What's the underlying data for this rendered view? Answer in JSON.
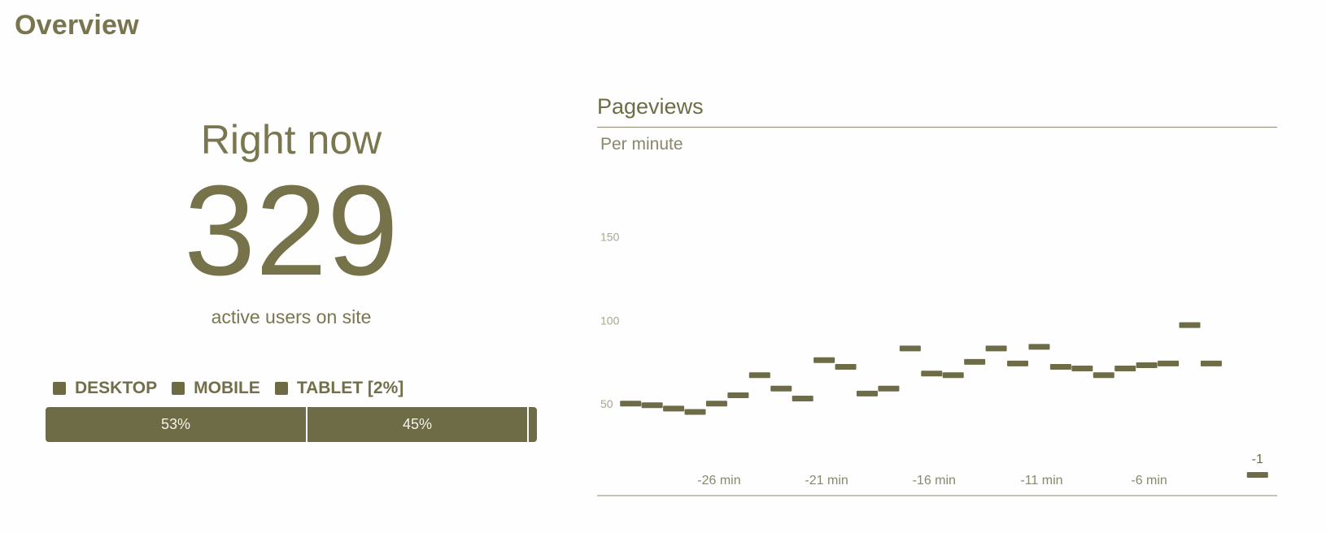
{
  "header": {
    "title": "Overview"
  },
  "realtime": {
    "heading": "Right now",
    "count": "329",
    "caption": "active users on site"
  },
  "devices": {
    "legend": [
      {
        "label": "DESKTOP"
      },
      {
        "label": "MOBILE"
      },
      {
        "label": "TABLET [2%]"
      }
    ],
    "segments": [
      {
        "name": "desktop",
        "value": 53,
        "label": "53%"
      },
      {
        "name": "mobile",
        "value": 45,
        "label": "45%"
      },
      {
        "name": "tablet",
        "value": 2,
        "label": ""
      }
    ],
    "colors": {
      "bar": "#6e6b47"
    }
  },
  "pageviews": {
    "title": "Pageviews",
    "subtitle": "Per minute"
  },
  "chart_data": {
    "type": "bar",
    "title": "Pageviews",
    "subtitle": "Per minute",
    "x": [
      -30,
      -29,
      -28,
      -27,
      -26,
      -25,
      -24,
      -23,
      -22,
      -21,
      -20,
      -19,
      -18,
      -17,
      -16,
      -15,
      -14,
      -13,
      -12,
      -11,
      -10,
      -9,
      -8,
      -7,
      -6,
      -5,
      -4,
      -3,
      -2,
      -1
    ],
    "values": [
      50,
      49,
      47,
      45,
      50,
      55,
      67,
      59,
      53,
      76,
      72,
      56,
      59,
      83,
      68,
      67,
      75,
      83,
      74,
      84,
      72,
      71,
      67,
      71,
      73,
      74,
      97,
      74,
      0,
      0
    ],
    "y_ticks": [
      "50",
      "100",
      "150"
    ],
    "ylim": [
      0,
      180
    ],
    "x_tick_labels": [
      {
        "x": -26,
        "label": "-26 min"
      },
      {
        "x": -21,
        "label": "-21 min"
      },
      {
        "x": -16,
        "label": "-16 min"
      },
      {
        "x": -11,
        "label": "-11 min"
      },
      {
        "x": -6,
        "label": "-6 min"
      }
    ],
    "last_bar_label": "-1",
    "grid": false,
    "color": "#6e6b47"
  }
}
